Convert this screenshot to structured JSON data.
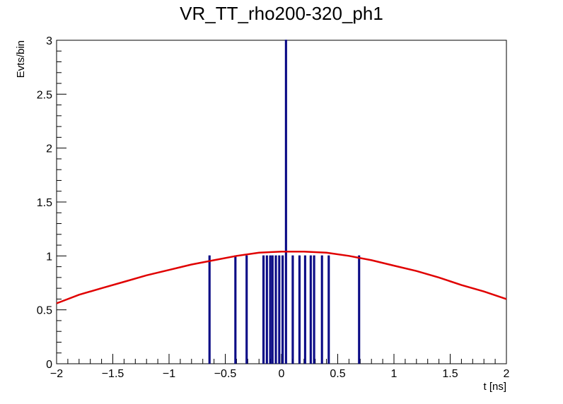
{
  "chart_data": {
    "type": "bar",
    "title": "VR_TT_rho200-320_ph1",
    "xlabel": "t [ns]",
    "ylabel": "Evts/bin",
    "xlim": [
      -2,
      2
    ],
    "ylim": [
      0,
      3
    ],
    "xticks": [
      -2,
      -1.5,
      -1,
      -0.5,
      0,
      0.5,
      1,
      1.5,
      2
    ],
    "xtick_labels": [
      "−2",
      "−1.5",
      "−1",
      "−0.5",
      "0",
      "0.5",
      "1",
      "1.5",
      "2"
    ],
    "yticks": [
      0,
      0.5,
      1,
      1.5,
      2,
      2.5,
      3
    ],
    "ytick_labels": [
      "0",
      "0.5",
      "1",
      "1.5",
      "2",
      "2.5",
      "3"
    ],
    "grid": false,
    "legend": "none",
    "series": [
      {
        "kind": "histogram",
        "color": "#000080",
        "bins": [
          {
            "x": -0.64,
            "value": 1
          },
          {
            "x": -0.41,
            "value": 1
          },
          {
            "x": -0.31,
            "value": 1
          },
          {
            "x": -0.16,
            "value": 1
          },
          {
            "x": -0.13,
            "value": 1
          },
          {
            "x": -0.1,
            "value": 1
          },
          {
            "x": -0.08,
            "value": 1
          },
          {
            "x": -0.05,
            "value": 1
          },
          {
            "x": -0.02,
            "value": 1
          },
          {
            "x": 0.01,
            "value": 1
          },
          {
            "x": 0.04,
            "value": 3
          },
          {
            "x": 0.1,
            "value": 1
          },
          {
            "x": 0.16,
            "value": 1
          },
          {
            "x": 0.21,
            "value": 1
          },
          {
            "x": 0.26,
            "value": 1
          },
          {
            "x": 0.29,
            "value": 1
          },
          {
            "x": 0.36,
            "value": 1
          },
          {
            "x": 0.42,
            "value": 1
          },
          {
            "x": 0.69,
            "value": 1
          }
        ]
      },
      {
        "kind": "fit",
        "color": "#e00000",
        "x": [
          -2,
          -1.8,
          -1.6,
          -1.4,
          -1.2,
          -1.0,
          -0.8,
          -0.6,
          -0.4,
          -0.2,
          0,
          0.2,
          0.4,
          0.6,
          0.8,
          1.0,
          1.2,
          1.4,
          1.6,
          1.8,
          2
        ],
        "y": [
          0.56,
          0.64,
          0.7,
          0.76,
          0.82,
          0.87,
          0.92,
          0.96,
          1.0,
          1.03,
          1.04,
          1.04,
          1.03,
          1.0,
          0.96,
          0.91,
          0.86,
          0.8,
          0.73,
          0.67,
          0.6
        ]
      }
    ]
  }
}
